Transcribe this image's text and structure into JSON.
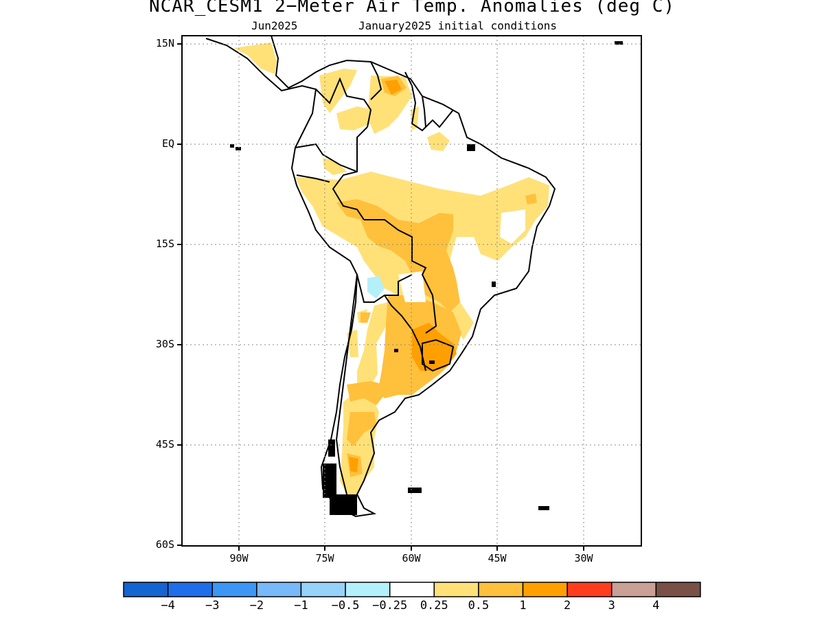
{
  "title": "NCAR_CESM1 2−Meter Air Temp. Anomalies (deg C)",
  "subtitle_left": "Jun2025",
  "subtitle_right": "January2025 initial conditions",
  "map": {
    "lat_labels": [
      "15N",
      "EQ",
      "15S",
      "30S",
      "45S",
      "60S"
    ],
    "lon_labels": [
      "90W",
      "75W",
      "60W",
      "45W",
      "30W"
    ]
  },
  "colorbar": {
    "colors": [
      "#1464d2",
      "#1e6eeb",
      "#3c96f5",
      "#78b9fa",
      "#96d2fa",
      "#b4f0fa",
      "#ffffff",
      "#ffe178",
      "#ffc03c",
      "#ffa000",
      "#ff3c1e",
      "#c8a096",
      "#785046"
    ],
    "labels": [
      "−4",
      "−3",
      "−2",
      "−1",
      "−0.5",
      "−0.25",
      "0.25",
      "0.5",
      "1",
      "2",
      "3",
      "4"
    ]
  }
}
